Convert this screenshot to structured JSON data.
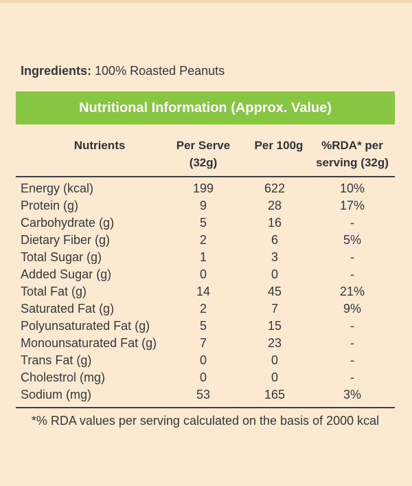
{
  "ingredients": {
    "label": "Ingredients:",
    "value": "100% Roasted Peanuts"
  },
  "table": {
    "title": "Nutritional Information (Approx. Value)",
    "headers": {
      "nutrients": "Nutrients",
      "per_serve_line1": "Per Serve",
      "per_serve_line2": "(32g)",
      "per_100g": "Per 100g",
      "rda_line1": "%RDA* per",
      "rda_line2": "serving (32g)"
    },
    "rows": [
      {
        "name": "Energy (kcal)",
        "per_serve": "199",
        "per_100g": "622",
        "rda": "10%"
      },
      {
        "name": "Protein (g)",
        "per_serve": "9",
        "per_100g": "28",
        "rda": "17%"
      },
      {
        "name": "Carbohydrate (g)",
        "per_serve": "5",
        "per_100g": "16",
        "rda": "-"
      },
      {
        "name": "Dietary Fiber (g)",
        "per_serve": "2",
        "per_100g": "6",
        "rda": "5%"
      },
      {
        "name": "Total Sugar (g)",
        "per_serve": "1",
        "per_100g": "3",
        "rda": "-"
      },
      {
        "name": "Added Sugar (g)",
        "per_serve": "0",
        "per_100g": "0",
        "rda": "-"
      },
      {
        "name": "Total Fat (g)",
        "per_serve": "14",
        "per_100g": "45",
        "rda": "21%"
      },
      {
        "name": "Saturated Fat (g)",
        "per_serve": "2",
        "per_100g": "7",
        "rda": "9%"
      },
      {
        "name": "Polyunsaturated Fat (g)",
        "per_serve": "5",
        "per_100g": "15",
        "rda": "-"
      },
      {
        "name": "Monounsaturated Fat (g)",
        "per_serve": "7",
        "per_100g": "23",
        "rda": "-"
      },
      {
        "name": "Trans Fat (g)",
        "per_serve": "0",
        "per_100g": "0",
        "rda": "-"
      },
      {
        "name": "Cholestrol (mg)",
        "per_serve": "0",
        "per_100g": "0",
        "rda": "-"
      },
      {
        "name": "Sodium (mg)",
        "per_serve": "53",
        "per_100g": "165",
        "rda": "3%"
      }
    ],
    "footnote": "*% RDA values per serving calculated on the basis of 2000 kcal"
  },
  "colors": {
    "background": "#fbe9d2",
    "title_bar": "#86c641",
    "text": "#34373b",
    "rule": "#3a3d45"
  }
}
